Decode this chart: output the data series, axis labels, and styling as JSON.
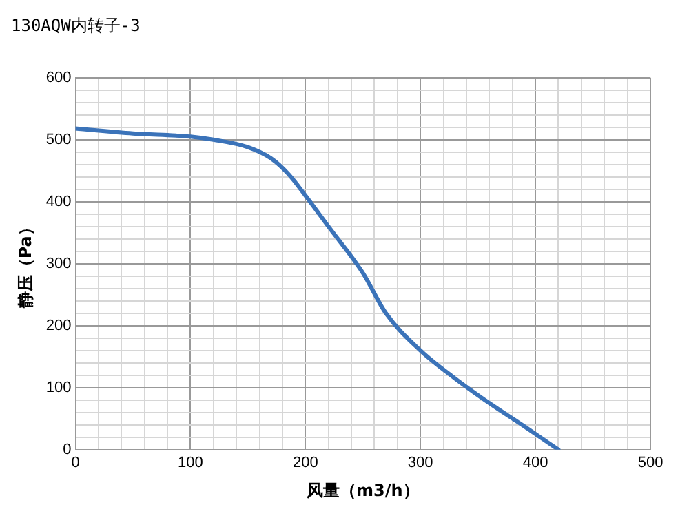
{
  "chart_data": {
    "type": "line",
    "title": "130AQW内转子-3",
    "xlabel": "风量（m3/h）",
    "ylabel": "静压（Pa）",
    "x": [
      0,
      50,
      100,
      120,
      150,
      170,
      185,
      200,
      220,
      250,
      270,
      300,
      330,
      360,
      390,
      420
    ],
    "series": [
      {
        "color": "#3b73b9",
        "values": [
          518,
          510,
          505,
          500,
          488,
          470,
          445,
          410,
          360,
          285,
          220,
          160,
          115,
          75,
          38,
          0
        ]
      }
    ],
    "xlim": [
      0,
      500
    ],
    "xticks": [
      0,
      {
        "value": 20,
        "label": null
      },
      {
        "value": 40,
        "label": null
      },
      {
        "value": 60,
        "label": null
      },
      {
        "value": 80,
        "label": null
      },
      100,
      {
        "value": 120,
        "label": null
      },
      {
        "value": 140,
        "label": null
      },
      {
        "value": 160,
        "label": null
      },
      {
        "value": 180,
        "label": null
      },
      200,
      {
        "value": 220,
        "label": null
      },
      {
        "value": 240,
        "label": null
      },
      {
        "value": 260,
        "label": null
      },
      {
        "value": 280,
        "label": null
      },
      300,
      {
        "value": 320,
        "label": null
      },
      {
        "value": 340,
        "label": null
      },
      {
        "value": 360,
        "label": null
      },
      {
        "value": 380,
        "label": null
      },
      400,
      {
        "value": 420,
        "label": null
      },
      {
        "value": 440,
        "label": null
      },
      {
        "value": 460,
        "label": null
      },
      {
        "value": 480,
        "label": null
      },
      500
    ],
    "ylim": [
      0,
      600
    ],
    "yticks": [
      0,
      {
        "value": 20,
        "label": null
      },
      {
        "value": 40,
        "label": null
      },
      {
        "value": 60,
        "label": null
      },
      {
        "value": 80,
        "label": null
      },
      100,
      {
        "value": 120,
        "label": null
      },
      {
        "value": 140,
        "label": null
      },
      {
        "value": 160,
        "label": null
      },
      {
        "value": 180,
        "label": null
      },
      200,
      {
        "value": 220,
        "label": null
      },
      {
        "value": 240,
        "label": null
      },
      {
        "value": 260,
        "label": null
      },
      {
        "value": 280,
        "label": null
      },
      300,
      {
        "value": 320,
        "label": null
      },
      {
        "value": 340,
        "label": null
      },
      {
        "value": 360,
        "label": null
      },
      {
        "value": 380,
        "label": null
      },
      400,
      {
        "value": 420,
        "label": null
      },
      {
        "value": 440,
        "label": null
      },
      {
        "value": 460,
        "label": null
      },
      {
        "value": 480,
        "label": null
      },
      500,
      {
        "value": 520,
        "label": null
      },
      {
        "value": 540,
        "label": null
      },
      {
        "value": 560,
        "label": null
      },
      {
        "value": 580,
        "label": null
      },
      600
    ],
    "grid": true,
    "marker": "none",
    "line_style": "solid",
    "legend": false
  }
}
